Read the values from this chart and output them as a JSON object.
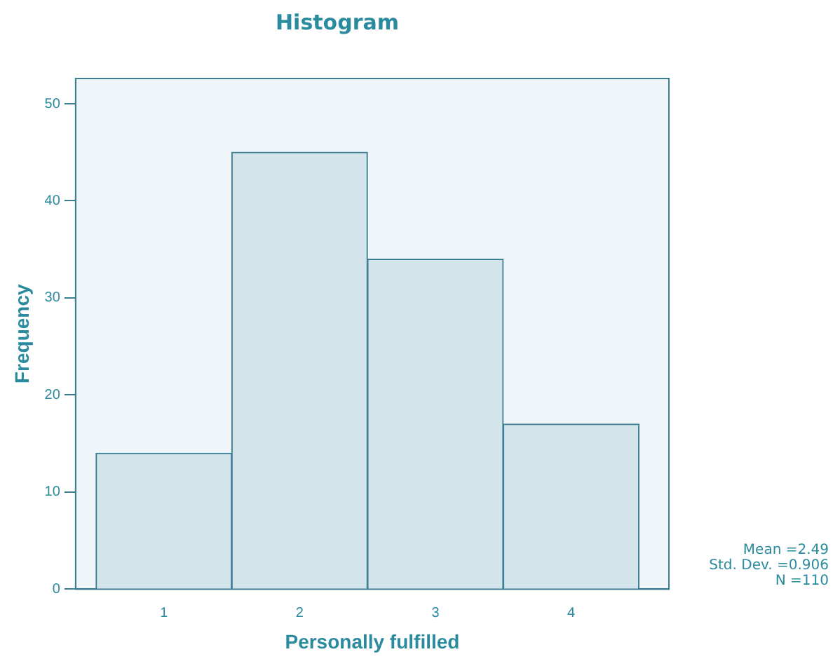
{
  "chart_data": {
    "type": "histogram",
    "title": "Histogram",
    "xlabel": "Personally fulfilled",
    "ylabel": "Frequency",
    "bins": [
      0.5,
      1.5,
      2.5,
      3.5,
      4.5
    ],
    "values": [
      14,
      45,
      34,
      17
    ],
    "color": "#d3e4eb",
    "xlim": [
      0.35,
      4.72
    ],
    "xticks": [
      1,
      2,
      3,
      4
    ],
    "ylim": [
      0,
      52.6
    ],
    "yticks": [
      0,
      10,
      20,
      30,
      40,
      50
    ],
    "grid": false,
    "legend": false,
    "annotations": [
      "Mean =2.49",
      "Std. Dev. =0.906",
      "N =110"
    ]
  }
}
